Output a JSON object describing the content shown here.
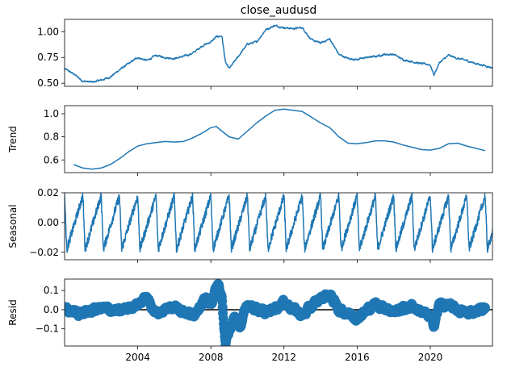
{
  "chart_data": {
    "type": "line",
    "title": "close_audusd",
    "x_ticks": [
      "2004",
      "2008",
      "2012",
      "2016",
      "2020"
    ],
    "xlim": [
      2000.0,
      2023.4
    ],
    "series_color": "#1f77b4",
    "panels": [
      {
        "id": "observed",
        "ylabel": "",
        "ylim": [
          0.47,
          1.12
        ],
        "y_ticks": [
          "0.50",
          "0.75",
          "1.00"
        ],
        "x": [
          2000.0,
          2000.5,
          2001.0,
          2001.5,
          2002.0,
          2002.5,
          2003.0,
          2003.5,
          2004.0,
          2004.5,
          2005.0,
          2005.5,
          2006.0,
          2006.5,
          2007.0,
          2007.5,
          2008.0,
          2008.3,
          2008.6,
          2008.8,
          2009.0,
          2009.5,
          2010.0,
          2010.5,
          2011.0,
          2011.5,
          2012.0,
          2012.5,
          2013.0,
          2013.5,
          2014.0,
          2014.5,
          2015.0,
          2015.5,
          2016.0,
          2016.5,
          2017.0,
          2017.5,
          2018.0,
          2018.5,
          2019.0,
          2019.5,
          2020.0,
          2020.2,
          2020.5,
          2021.0,
          2021.5,
          2022.0,
          2022.5,
          2023.0,
          2023.4
        ],
        "y": [
          0.64,
          0.59,
          0.52,
          0.51,
          0.53,
          0.56,
          0.63,
          0.69,
          0.75,
          0.72,
          0.77,
          0.75,
          0.74,
          0.76,
          0.79,
          0.86,
          0.9,
          0.95,
          0.96,
          0.7,
          0.64,
          0.76,
          0.88,
          0.9,
          1.02,
          1.06,
          1.04,
          1.03,
          1.04,
          0.92,
          0.89,
          0.93,
          0.78,
          0.74,
          0.73,
          0.75,
          0.76,
          0.78,
          0.78,
          0.73,
          0.71,
          0.69,
          0.68,
          0.58,
          0.7,
          0.77,
          0.74,
          0.72,
          0.69,
          0.67,
          0.65
        ],
        "noise": 0.012
      },
      {
        "id": "trend",
        "ylabel": "Trend",
        "ylim": [
          0.49,
          1.07
        ],
        "y_ticks": [
          "0.6",
          "0.8",
          "1.0"
        ],
        "x": [
          2000.5,
          2001.0,
          2001.5,
          2002.0,
          2002.5,
          2003.0,
          2003.5,
          2004.0,
          2004.5,
          2005.0,
          2005.5,
          2006.0,
          2006.5,
          2007.0,
          2007.5,
          2008.0,
          2008.3,
          2008.6,
          2009.0,
          2009.5,
          2010.0,
          2010.5,
          2011.0,
          2011.5,
          2012.0,
          2012.5,
          2013.0,
          2013.5,
          2014.0,
          2014.5,
          2015.0,
          2015.5,
          2016.0,
          2016.5,
          2017.0,
          2017.5,
          2018.0,
          2018.5,
          2019.0,
          2019.5,
          2020.0,
          2020.5,
          2021.0,
          2021.5,
          2022.0,
          2022.5,
          2023.0
        ],
        "y": [
          0.56,
          0.53,
          0.52,
          0.53,
          0.56,
          0.61,
          0.67,
          0.72,
          0.74,
          0.75,
          0.76,
          0.755,
          0.76,
          0.79,
          0.83,
          0.88,
          0.89,
          0.85,
          0.8,
          0.78,
          0.85,
          0.92,
          0.98,
          1.03,
          1.04,
          1.03,
          1.02,
          0.97,
          0.92,
          0.88,
          0.8,
          0.745,
          0.74,
          0.75,
          0.765,
          0.765,
          0.755,
          0.73,
          0.71,
          0.69,
          0.685,
          0.7,
          0.74,
          0.745,
          0.72,
          0.7,
          0.68
        ]
      },
      {
        "id": "seasonal",
        "ylabel": "Seasonal",
        "ylim": [
          -0.025,
          0.02
        ],
        "y_ticks": [
          "0.02",
          "0.00",
          "−0.02"
        ],
        "period": 1.0,
        "amplitude": 0.018,
        "noise": 0.003
      },
      {
        "id": "resid",
        "ylabel": "Resid",
        "ylim": [
          -0.19,
          0.16
        ],
        "y_ticks": [
          "0.1",
          "0.0",
          "−0.1"
        ],
        "x": [
          2000.0,
          2001.0,
          2002.0,
          2003.0,
          2004.0,
          2004.5,
          2005.0,
          2006.0,
          2007.0,
          2007.6,
          2008.0,
          2008.4,
          2008.6,
          2008.8,
          2009.0,
          2009.3,
          2009.6,
          2010.0,
          2011.0,
          2012.0,
          2013.0,
          2014.0,
          2014.5,
          2015.0,
          2016.0,
          2017.0,
          2018.0,
          2019.0,
          2020.0,
          2020.2,
          2020.5,
          2021.0,
          2022.0,
          2023.0
        ],
        "y": [
          0.0,
          -0.02,
          0.01,
          -0.01,
          0.03,
          0.06,
          -0.02,
          0.02,
          -0.03,
          0.05,
          0.03,
          0.14,
          0.05,
          -0.17,
          -0.12,
          -0.04,
          -0.09,
          0.03,
          -0.02,
          0.04,
          -0.03,
          0.06,
          0.08,
          0.0,
          -0.04,
          0.03,
          -0.01,
          0.02,
          -0.04,
          -0.08,
          0.03,
          0.02,
          -0.02,
          0.01
        ],
        "noise": 0.02,
        "zero_line": true
      }
    ]
  }
}
